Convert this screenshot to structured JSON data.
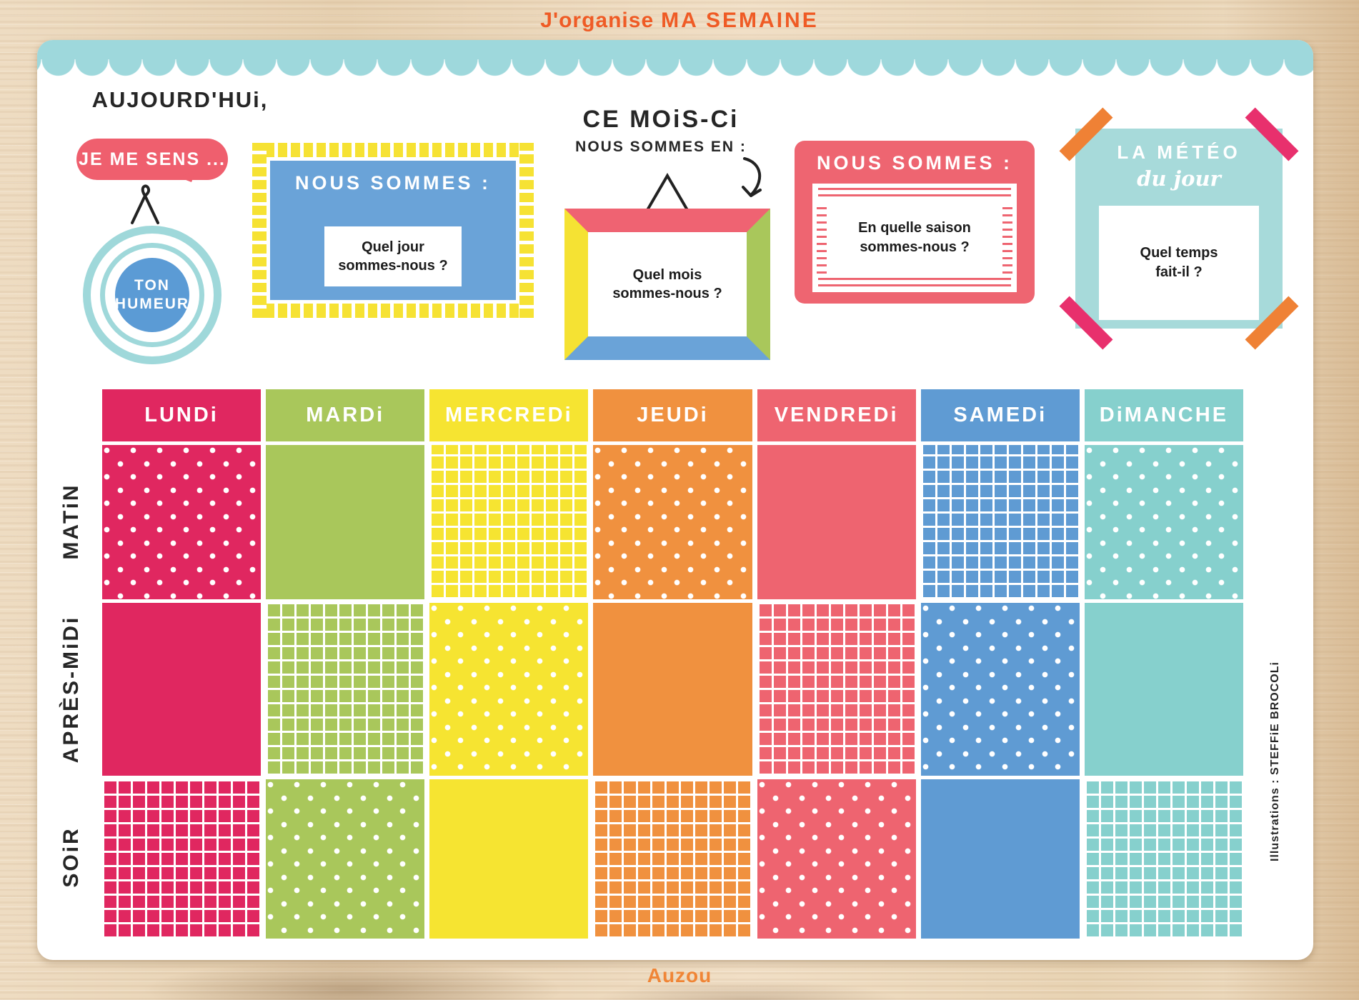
{
  "title": {
    "prefix": "J'organise",
    "main": "MA SEMAINE"
  },
  "today": {
    "heading": "AUJOURD'HUi,",
    "bubble": "JE ME SENS ...",
    "mood_line1": "TON",
    "mood_line2": "HUMEUR"
  },
  "day_panel": {
    "title": "NOUS SOMMES :",
    "question_line1": "Quel jour",
    "question_line2": "sommes-nous ?"
  },
  "month_panel": {
    "heading": "CE MOiS-Ci",
    "subheading": "NOUS SOMMES EN :",
    "question_line1": "Quel mois",
    "question_line2": "sommes-nous ?"
  },
  "season_panel": {
    "title": "NOUS SOMMES :",
    "question_line1": "En quelle saison",
    "question_line2": "sommes-nous ?"
  },
  "weather_panel": {
    "title": "LA MÉTÉO",
    "subtitle": "du jour",
    "question_line1": "Quel temps",
    "question_line2": "fait-il ?"
  },
  "week_grid": {
    "rows": [
      {
        "label": "MATiN",
        "key": "matin"
      },
      {
        "label": "APRÈS-MiDi",
        "key": "apres-midi"
      },
      {
        "label": "SOiR",
        "key": "soir"
      }
    ],
    "days": [
      {
        "label": "LUNDi",
        "key": "lundi",
        "color": "#e02760",
        "patterns": [
          "dots",
          "solid",
          "grid"
        ]
      },
      {
        "label": "MARDi",
        "key": "mardi",
        "color": "#a9c75b",
        "patterns": [
          "solid",
          "grid",
          "dots"
        ]
      },
      {
        "label": "MERCREDi",
        "key": "mercredi",
        "color": "#f6e431",
        "patterns": [
          "grid",
          "dots",
          "solid"
        ]
      },
      {
        "label": "JEUDi",
        "key": "jeudi",
        "color": "#f0913f",
        "patterns": [
          "dots",
          "solid",
          "grid"
        ]
      },
      {
        "label": "VENDREDi",
        "key": "vendredi",
        "color": "#ee6470",
        "patterns": [
          "solid",
          "grid",
          "dots"
        ]
      },
      {
        "label": "SAMEDi",
        "key": "samedi",
        "color": "#5f9bd3",
        "patterns": [
          "grid",
          "dots",
          "solid"
        ]
      },
      {
        "label": "DiMANCHE",
        "key": "dimanche",
        "color": "#86d0cd",
        "patterns": [
          "dots",
          "solid",
          "grid"
        ]
      }
    ]
  },
  "credits": {
    "illustrator": "Illustrations : STEFFiE BROCOLi",
    "publisher": "Auzou"
  },
  "colors": {
    "title_orange": "#ef5b25",
    "scallop_teal": "#9ed8dc",
    "bubble_red": "#ef5f6e",
    "mood_blue": "#5b9bd5",
    "mood_ring_teal": "#9fd8da",
    "panel_blue": "#6aa3d8",
    "tick_yellow": "#f6e233",
    "frame_top_red": "#ef6372",
    "frame_right_green": "#a9c75b",
    "frame_bottom_blue": "#6aa3d8",
    "frame_left_yellow": "#f5e233",
    "season_red": "#ee6571",
    "meteo_teal": "#a7dada",
    "tape_orange": "#ef8135",
    "tape_pink": "#e8306d"
  }
}
